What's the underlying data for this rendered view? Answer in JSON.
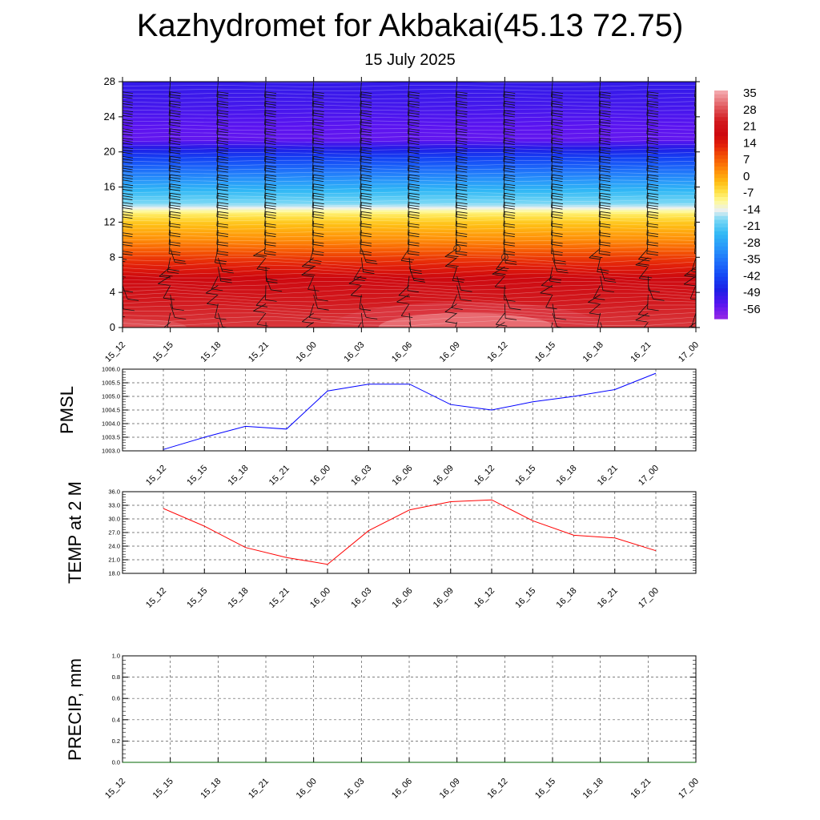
{
  "title": "Kazhydromet for Akbakai(45.13 72.75)",
  "subtitle": "15 July 2025",
  "chart_data": [
    {
      "type": "heatmap",
      "name": "vertical-section",
      "x_ticks": [
        "15_12",
        "15_15",
        "15_18",
        "15_21",
        "16_00",
        "16_03",
        "16_06",
        "16_09",
        "16_12",
        "16_15",
        "16_18",
        "16_21",
        "17_00"
      ],
      "y_ticks": [
        0,
        4,
        8,
        12,
        16,
        20,
        24,
        28
      ],
      "ylim": [
        0,
        28
      ],
      "colorbar": {
        "labels": [
          35,
          28,
          21,
          14,
          7,
          0,
          -7,
          -14,
          -21,
          -28,
          -35,
          -42,
          -49,
          -56
        ],
        "range": [
          -60,
          37
        ]
      },
      "level_profile": [
        {
          "level": 0,
          "value": 27
        },
        {
          "level": 3,
          "value": 24
        },
        {
          "level": 5,
          "value": 20
        },
        {
          "level": 8,
          "value": 11
        },
        {
          "level": 10,
          "value": 3
        },
        {
          "level": 12,
          "value": -3
        },
        {
          "level": 13,
          "value": -8
        },
        {
          "level": 14,
          "value": -17
        },
        {
          "level": 16,
          "value": -26
        },
        {
          "level": 18,
          "value": -36
        },
        {
          "level": 20,
          "value": -46
        },
        {
          "level": 21.5,
          "value": -55
        },
        {
          "level": 23,
          "value": -54
        },
        {
          "level": 25,
          "value": -52
        },
        {
          "level": 28,
          "value": -50
        }
      ],
      "grid": false
    },
    {
      "type": "line",
      "name": "pmsl",
      "ylabel": "PMSL",
      "x": [
        "15_12",
        "15_15",
        "15_18",
        "15_21",
        "16_00",
        "16_03",
        "16_06",
        "16_09",
        "16_12",
        "16_15",
        "16_18",
        "16_21",
        "17_00"
      ],
      "y_ticks": [
        "1003.0",
        "1003.5",
        "1004.0",
        "1004.5",
        "1005.0",
        "1005.5",
        "1006.0"
      ],
      "ylim": [
        1003.0,
        1006.0
      ],
      "series": [
        {
          "values": [
            1003.05,
            1003.5,
            1003.9,
            1003.8,
            1005.2,
            1005.45,
            1005.45,
            1004.7,
            1004.5,
            1004.8,
            1005.0,
            1005.25,
            1005.85
          ],
          "color": "#0000ff"
        }
      ],
      "grid": true
    },
    {
      "type": "line",
      "name": "temp",
      "ylabel": "TEMP at 2 M",
      "x": [
        "15_12",
        "15_15",
        "15_18",
        "15_21",
        "16_00",
        "16_03",
        "16_06",
        "16_09",
        "16_12",
        "16_15",
        "16_18",
        "16_21",
        "17_00"
      ],
      "y_ticks": [
        "18.0",
        "21.0",
        "24.0",
        "27.0",
        "30.0",
        "33.0",
        "36.0"
      ],
      "ylim": [
        18.0,
        36.0
      ],
      "series": [
        {
          "values": [
            32.3,
            28.4,
            23.7,
            21.5,
            20.0,
            27.4,
            32.0,
            33.8,
            34.2,
            29.6,
            26.4,
            25.8,
            23.0
          ],
          "color": "#ff0000"
        }
      ],
      "grid": true
    },
    {
      "type": "line",
      "name": "precip",
      "ylabel": "PRECIP, mm",
      "x": [
        "15_12",
        "15_15",
        "15_18",
        "15_21",
        "16_00",
        "16_03",
        "16_06",
        "16_09",
        "16_12",
        "16_15",
        "16_18",
        "16_21",
        "17_00"
      ],
      "y_ticks": [
        "0.0",
        "0.2",
        "0.4",
        "0.6",
        "0.8",
        "1.0"
      ],
      "ylim": [
        0.0,
        1.0
      ],
      "series": [
        {
          "values": [
            0,
            0,
            0,
            0,
            0,
            0,
            0,
            0,
            0,
            0,
            0,
            0,
            0
          ],
          "color": "#006400"
        }
      ],
      "grid": true
    }
  ]
}
